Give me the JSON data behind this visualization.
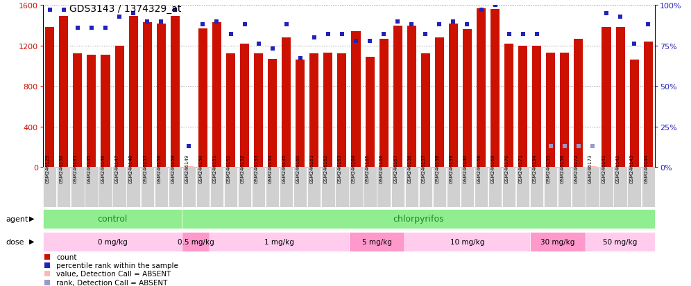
{
  "title": "GDS3143 / 1374329_at",
  "samples": [
    "GSM246129",
    "GSM246130",
    "GSM246131",
    "GSM246145",
    "GSM246146",
    "GSM246147",
    "GSM246148",
    "GSM246157",
    "GSM246158",
    "GSM246159",
    "GSM246149",
    "GSM246150",
    "GSM246151",
    "GSM246152",
    "GSM246132",
    "GSM246133",
    "GSM246134",
    "GSM246135",
    "GSM246160",
    "GSM246161",
    "GSM246162",
    "GSM246163",
    "GSM246164",
    "GSM246165",
    "GSM246166",
    "GSM246167",
    "GSM246136",
    "GSM246137",
    "GSM246138",
    "GSM246139",
    "GSM246140",
    "GSM246168",
    "GSM246169",
    "GSM246170",
    "GSM246171",
    "GSM246154",
    "GSM246155",
    "GSM246156",
    "GSM246172",
    "GSM246173",
    "GSM246141",
    "GSM246142",
    "GSM246143",
    "GSM246144"
  ],
  "counts": [
    1380,
    1490,
    1120,
    1110,
    1110,
    1200,
    1490,
    1430,
    1420,
    1490,
    5,
    1370,
    1430,
    1120,
    1220,
    1120,
    1070,
    1280,
    1060,
    1120,
    1130,
    1120,
    1340,
    1090,
    1270,
    1400,
    1400,
    1120,
    1280,
    1420,
    1360,
    1565,
    1560,
    1220,
    1200,
    1200,
    1130,
    1130,
    1270,
    5,
    1380,
    1380,
    1060,
    1240
  ],
  "ranks": [
    97,
    97,
    86,
    86,
    86,
    93,
    95,
    90,
    90,
    97,
    13,
    88,
    90,
    82,
    88,
    76,
    73,
    88,
    67,
    80,
    82,
    82,
    78,
    78,
    82,
    90,
    88,
    82,
    88,
    90,
    88,
    97,
    100,
    82,
    82,
    82,
    13,
    13,
    13,
    13,
    95,
    93,
    76,
    88
  ],
  "absent_count_indices": [
    10,
    39
  ],
  "absent_rank_indices": [
    36,
    37,
    38,
    39
  ],
  "bar_color": "#cc1100",
  "dot_color": "#2222bb",
  "absent_bar_color": "#ffb6b6",
  "absent_dot_color": "#9999cc",
  "agent_color": "#90ee90",
  "agent_text_color": "#228822",
  "dose_colors_alt": [
    "#ffccee",
    "#ff99cc",
    "#ffccee",
    "#ff99cc",
    "#ffccee",
    "#ff99cc",
    "#ffccee"
  ],
  "agent_groups": [
    {
      "label": "control",
      "start": 0,
      "end": 9
    },
    {
      "label": "chlorpyrifos",
      "start": 10,
      "end": 43
    }
  ],
  "dose_groups": [
    {
      "label": "0 mg/kg",
      "start": 0,
      "end": 9
    },
    {
      "label": "0.5 mg/kg",
      "start": 10,
      "end": 11
    },
    {
      "label": "1 mg/kg",
      "start": 12,
      "end": 21
    },
    {
      "label": "5 mg/kg",
      "start": 22,
      "end": 25
    },
    {
      "label": "10 mg/kg",
      "start": 26,
      "end": 34
    },
    {
      "label": "30 mg/kg",
      "start": 35,
      "end": 38
    },
    {
      "label": "50 mg/kg",
      "start": 39,
      "end": 43
    }
  ],
  "legend_items": [
    {
      "color": "#cc1100",
      "label": "count"
    },
    {
      "color": "#2222bb",
      "label": "percentile rank within the sample"
    },
    {
      "color": "#ffb6b6",
      "label": "value, Detection Call = ABSENT"
    },
    {
      "color": "#9999cc",
      "label": "rank, Detection Call = ABSENT"
    }
  ],
  "ylim_left": [
    0,
    1600
  ],
  "ylim_right": [
    0,
    100
  ],
  "yticks_left": [
    0,
    400,
    800,
    1200,
    1600
  ],
  "yticks_right": [
    0,
    25,
    50,
    75,
    100
  ]
}
